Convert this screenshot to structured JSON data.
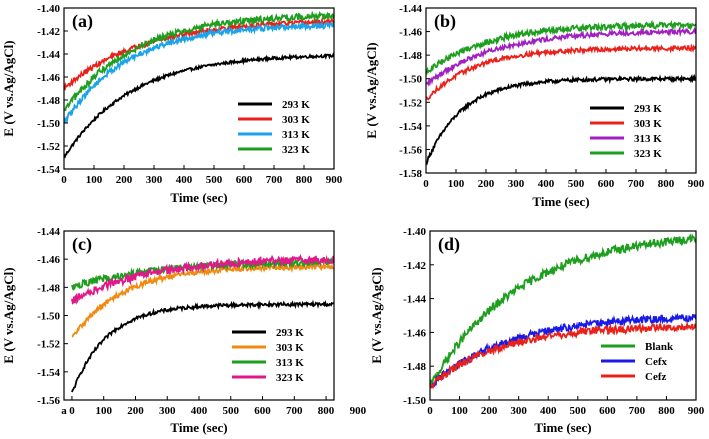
{
  "chart_data": [
    {
      "panel": "(a)",
      "type": "line",
      "xlabel": "Time (sec)",
      "ylabel": "E (V vs.Ag/AgCl)",
      "xlim": [
        0,
        900
      ],
      "ylim": [
        -1.54,
        -1.4
      ],
      "xticks": [
        0,
        100,
        200,
        300,
        400,
        500,
        600,
        700,
        800,
        900
      ],
      "xtick_labels": [
        "0",
        "100",
        "200",
        "300",
        "400",
        "500",
        "600",
        "700",
        "800",
        "900"
      ],
      "yticks": [
        -1.54,
        -1.52,
        -1.5,
        -1.48,
        -1.46,
        -1.44,
        -1.42,
        -1.4
      ],
      "ytick_labels": [
        "-1.54",
        "-1.52",
        "-1.50",
        "-1.48",
        "-1.46",
        "-1.44",
        "-1.42",
        "-1.40"
      ],
      "legend_position": "lower-right",
      "series": [
        {
          "name": "293 K",
          "color": "#000000",
          "start": -1.53,
          "end": -1.44,
          "tau": 220,
          "noise": 0.0012
        },
        {
          "name": "303 K",
          "color": "#e8221a",
          "start": -1.47,
          "end": -1.41,
          "tau": 260,
          "noise": 0.002
        },
        {
          "name": "313 K",
          "color": "#1aa3e8",
          "start": -1.5,
          "end": -1.414,
          "tau": 210,
          "noise": 0.0025
        },
        {
          "name": "323 K",
          "color": "#1e9e1e",
          "start": -1.49,
          "end": -1.405,
          "tau": 230,
          "noise": 0.0028
        }
      ]
    },
    {
      "panel": "(b)",
      "type": "line",
      "xlabel": "Time (sec)",
      "ylabel": "E (V vs.Ag/AgCl)",
      "xlim": [
        0,
        900
      ],
      "ylim": [
        -1.58,
        -1.44
      ],
      "xticks": [
        0,
        100,
        200,
        300,
        400,
        500,
        600,
        700,
        800,
        900
      ],
      "xtick_labels": [
        "0",
        "100",
        "200",
        "300",
        "400",
        "500",
        "600",
        "700",
        "800",
        "900"
      ],
      "yticks": [
        -1.58,
        -1.56,
        -1.54,
        -1.52,
        -1.5,
        -1.48,
        -1.46,
        -1.44
      ],
      "ytick_labels": [
        "-1.58",
        "-1.56",
        "-1.54",
        "-1.52",
        "-1.50",
        "-1.48",
        "-1.46",
        "-1.44"
      ],
      "legend_position": "lower-right",
      "series": [
        {
          "name": "293 K",
          "color": "#000000",
          "start": -1.572,
          "end": -1.5,
          "tau": 120,
          "noise": 0.0015
        },
        {
          "name": "303 K",
          "color": "#e8221a",
          "start": -1.518,
          "end": -1.474,
          "tau": 160,
          "noise": 0.0018
        },
        {
          "name": "313 K",
          "color": "#a020c0",
          "start": -1.505,
          "end": -1.459,
          "tau": 220,
          "noise": 0.002
        },
        {
          "name": "323 K",
          "color": "#1e9e1e",
          "start": -1.495,
          "end": -1.454,
          "tau": 200,
          "noise": 0.0025
        }
      ]
    },
    {
      "panel": "(c)",
      "type": "line",
      "xlabel": "Time (sec)",
      "ylabel": "E (V vs.Ag/AgCl)",
      "xlim": [
        -25,
        825
      ],
      "ylim": [
        -1.56,
        -1.44
      ],
      "xticks": [
        -25,
        0,
        100,
        200,
        300,
        400,
        500,
        600,
        700,
        800,
        900
      ],
      "xtick_labels": [
        "a",
        "0",
        "100",
        "200",
        "300",
        "400",
        "500",
        "600",
        "700",
        "800",
        "900"
      ],
      "yticks": [
        -1.56,
        -1.54,
        -1.52,
        -1.5,
        -1.48,
        -1.46,
        -1.44
      ],
      "ytick_labels": [
        "-1.56",
        "-1.54",
        "-1.52",
        "-1.50",
        "-1.48",
        "-1.46",
        "-1.44"
      ],
      "legend_position": "lower-right",
      "series": [
        {
          "name": "293 K",
          "color": "#000000",
          "start": -1.555,
          "end": -1.492,
          "tau": 110,
          "noise": 0.0012
        },
        {
          "name": "303 K",
          "color": "#f08a10",
          "start": -1.516,
          "end": -1.465,
          "tau": 160,
          "noise": 0.0018
        },
        {
          "name": "313 K",
          "color": "#1e9e1e",
          "start": -1.48,
          "end": -1.461,
          "tau": 260,
          "noise": 0.0025
        },
        {
          "name": "323 K",
          "color": "#e0188a",
          "start": -1.49,
          "end": -1.459,
          "tau": 240,
          "noise": 0.0028
        }
      ]
    },
    {
      "panel": "(d)",
      "type": "line",
      "xlabel": "Time (sec)",
      "ylabel": "E (V vs.Ag/AgCl)",
      "xlim": [
        0,
        900
      ],
      "ylim": [
        -1.5,
        -1.4
      ],
      "xticks": [
        0,
        100,
        200,
        300,
        400,
        500,
        600,
        700,
        800,
        900
      ],
      "xtick_labels": [
        "0",
        "100",
        "200",
        "300",
        "400",
        "500",
        "600",
        "700",
        "800",
        "900"
      ],
      "yticks": [
        -1.5,
        -1.48,
        -1.46,
        -1.44,
        -1.42,
        -1.4
      ],
      "ytick_labels": [
        "-1.50",
        "-1.48",
        "-1.46",
        "-1.44",
        "-1.42",
        "-1.40"
      ],
      "legend_position": "lower-right",
      "series": [
        {
          "name": "Blank",
          "color": "#1e9e1e",
          "start": -1.492,
          "end": -1.4,
          "tau": 300,
          "noise": 0.0025
        },
        {
          "name": "Cefx",
          "color": "#1a1ae8",
          "start": -1.492,
          "end": -1.45,
          "tau": 260,
          "noise": 0.0022
        },
        {
          "name": "Cefz",
          "color": "#e8221a",
          "start": -1.492,
          "end": -1.456,
          "tau": 230,
          "noise": 0.0022
        }
      ]
    }
  ]
}
